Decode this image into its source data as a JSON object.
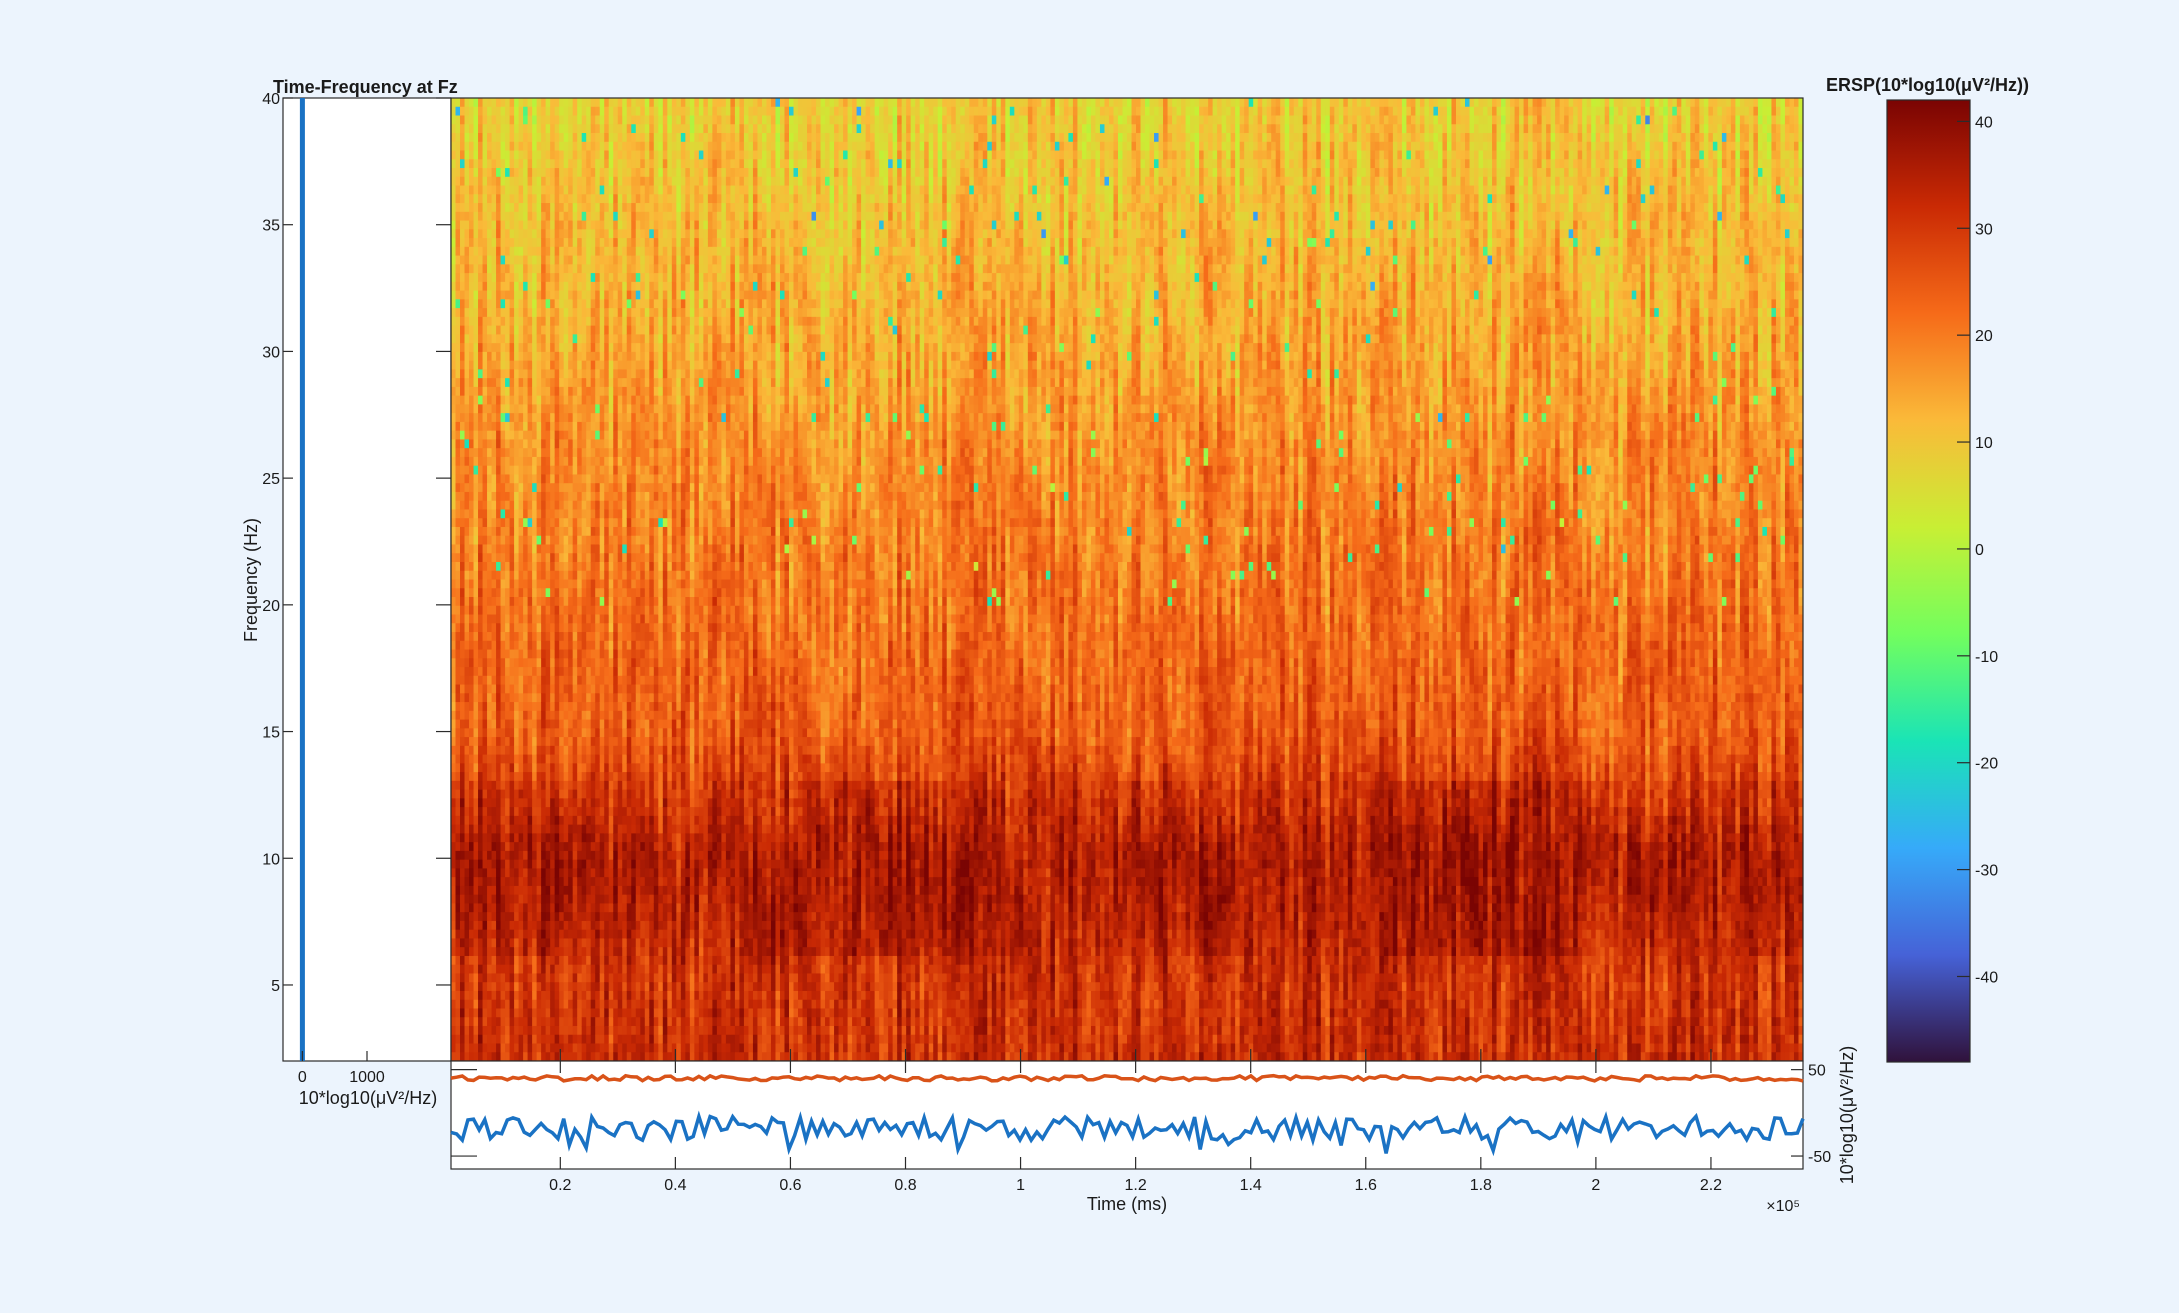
{
  "chart_data": [
    {
      "type": "heatmap",
      "title": "Time-Frequency at Fz",
      "xlabel": "Time (ms)",
      "ylabel": "Frequency (Hz)",
      "x_exponent_label": "×10⁵",
      "xlim": [
        1000,
        236000
      ],
      "ylim": [
        2,
        40
      ],
      "yticks": [
        5,
        10,
        15,
        20,
        25,
        30,
        35,
        40
      ],
      "xticks": [
        20000,
        40000,
        60000,
        80000,
        100000,
        120000,
        140000,
        160000,
        180000,
        200000,
        220000
      ],
      "xtick_labels": [
        "0.2",
        "0.4",
        "0.6",
        "0.8",
        "1",
        "1.2",
        "1.4",
        "1.6",
        "1.8",
        "2",
        "2.2"
      ],
      "frequency_profile": [
        {
          "f": 2,
          "ersp": 31
        },
        {
          "f": 5,
          "ersp": 30
        },
        {
          "f": 8,
          "ersp": 33
        },
        {
          "f": 10,
          "ersp": 34
        },
        {
          "f": 12,
          "ersp": 30
        },
        {
          "f": 15,
          "ersp": 24
        },
        {
          "f": 20,
          "ersp": 21
        },
        {
          "f": 25,
          "ersp": 18
        },
        {
          "f": 30,
          "ersp": 14
        },
        {
          "f": 35,
          "ersp": 11
        },
        {
          "f": 40,
          "ersp": 8
        }
      ],
      "colormap": [
        "#30123b",
        "#4662d7",
        "#36aaf9",
        "#1ae4b6",
        "#72fe5e",
        "#c8ef34",
        "#faba39",
        "#f66b19",
        "#ca2a04",
        "#7a0403"
      ],
      "clim": [
        -48,
        42
      ]
    },
    {
      "type": "bar",
      "xlabel": "10*log10(μV²/Hz)",
      "xticks": [
        0,
        1000
      ],
      "xtick_labels": [
        "0",
        "1000"
      ],
      "xlim": [
        -300,
        2300
      ],
      "baseline_marker": 0,
      "color": "#1a72c4"
    },
    {
      "type": "line",
      "ylabel": "10*log10(μV²/Hz)",
      "yticks": [
        50,
        -50
      ],
      "ytick_labels": [
        "50",
        "-50"
      ],
      "ylim": [
        -65,
        60
      ],
      "series": [
        {
          "color": "#d95319",
          "mean": 40,
          "amplitude": 3
        },
        {
          "color": "#1a72c4",
          "mean": -18,
          "amplitude": 14
        }
      ]
    },
    {
      "type": "colorbar",
      "title": "ERSP(10*log10(μV²/Hz))",
      "ticks": [
        40,
        30,
        20,
        10,
        0,
        -10,
        -20,
        -30,
        -40
      ],
      "tick_labels": [
        "40",
        "30",
        "20",
        "10",
        "0",
        "-10",
        "-20",
        "-30",
        "-40"
      ],
      "clim": [
        -48,
        42
      ]
    }
  ]
}
